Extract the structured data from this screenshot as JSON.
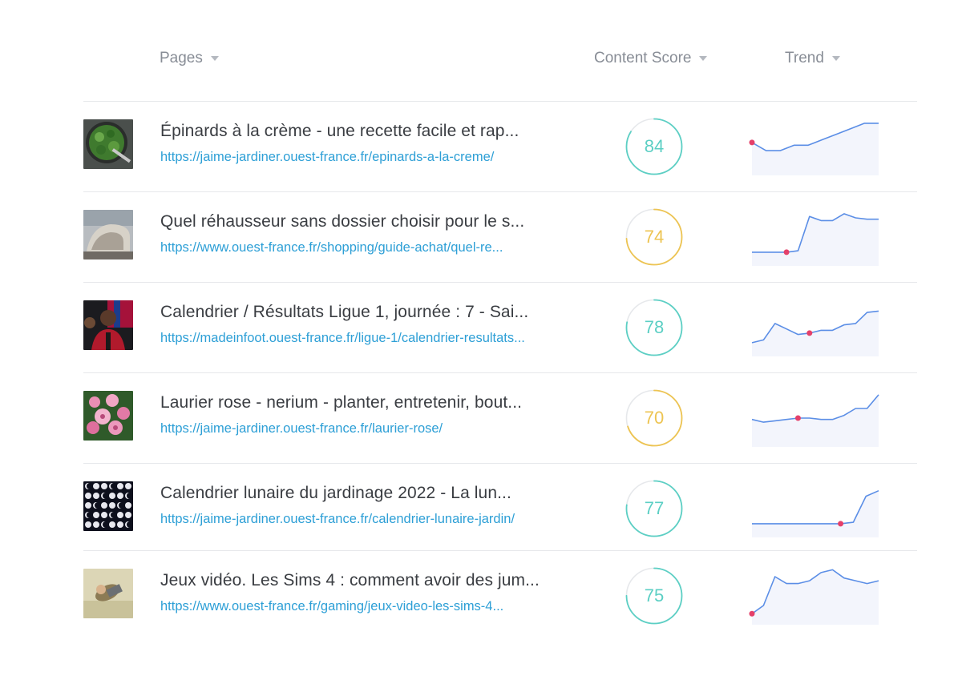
{
  "header": {
    "pages_label": "Pages",
    "score_label": "Content Score",
    "trend_label": "Trend"
  },
  "colors": {
    "teal": "#5ccfc4",
    "yellow": "#edc452",
    "line": "#5b8ee6",
    "area": "#f3f5fc",
    "dot": "#e4406a",
    "link": "#2d9fd6"
  },
  "rows": [
    {
      "title": "Épinards à la crème - une recette facile et rap...",
      "url": "https://jaime-jardiner.ouest-france.fr/epinards-a-la-creme/",
      "score": "84",
      "score_color": "teal",
      "thumb": "spinach-pan-image",
      "trend": [
        44,
        38,
        38,
        42,
        42,
        46,
        50,
        54,
        58,
        58
      ],
      "dot_index": 0
    },
    {
      "title": "Quel réhausseur sans dossier choisir pour le s...",
      "url": "https://www.ouest-france.fr/shopping/guide-achat/quel-re...",
      "score": "74",
      "score_color": "yellow",
      "thumb": "car-seat-image",
      "trend": [
        30,
        30,
        30,
        30,
        31,
        56,
        53,
        53,
        58,
        55,
        54,
        54
      ],
      "dot_index": 3
    },
    {
      "title": "Calendrier / Résultats Ligue 1, journée : 7 - Sai...",
      "url": "https://madeinfoot.ouest-france.fr/ligue-1/calendrier-resultats...",
      "score": "78",
      "score_color": "teal",
      "thumb": "football-player-image",
      "trend": [
        30,
        32,
        44,
        40,
        36,
        37,
        39,
        39,
        43,
        44,
        52,
        53
      ],
      "dot_index": 5
    },
    {
      "title": "Laurier rose - nerium - planter, entretenir, bout...",
      "url": "https://jaime-jardiner.ouest-france.fr/laurier-rose/",
      "score": "70",
      "score_color": "yellow",
      "thumb": "pink-flower-image",
      "trend": [
        40,
        38,
        39,
        40,
        41,
        41,
        40,
        40,
        43,
        48,
        48,
        58
      ],
      "dot_index": 4
    },
    {
      "title": "Calendrier lunaire du jardinage 2022 - La lun...",
      "url": "https://jaime-jardiner.ouest-france.fr/calendrier-lunaire-jardin/",
      "score": "77",
      "score_color": "teal",
      "thumb": "moon-phases-image",
      "trend": [
        30,
        30,
        30,
        30,
        30,
        30,
        30,
        30,
        31,
        50,
        54
      ],
      "dot_index": 7
    },
    {
      "title": "Jeux vidéo. Les Sims 4 : comment avoir des jum...",
      "url": "https://www.ouest-france.fr/gaming/jeux-video-les-sims-4...",
      "score": "75",
      "score_color": "teal",
      "thumb": "sims-character-image",
      "trend": [
        28,
        34,
        55,
        50,
        50,
        52,
        58,
        60,
        54,
        52,
        50,
        52
      ],
      "dot_index": 0
    }
  ]
}
